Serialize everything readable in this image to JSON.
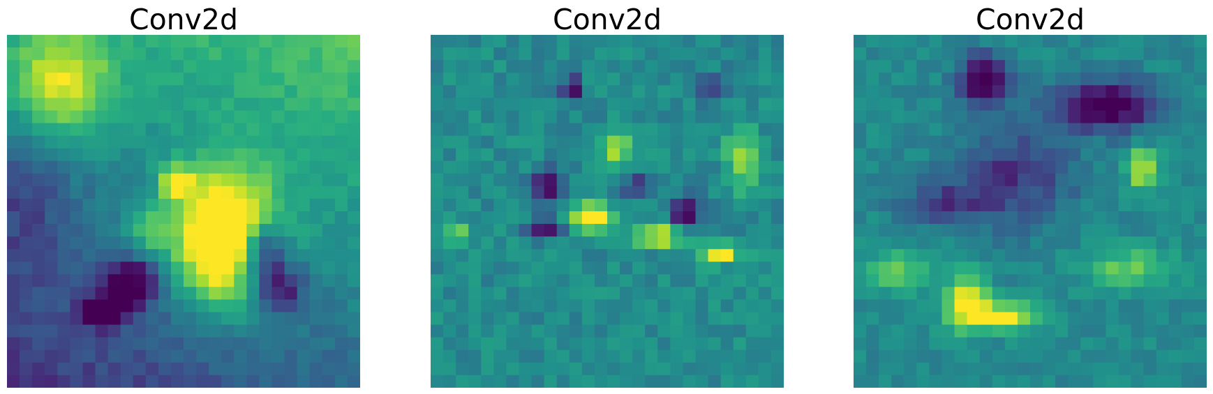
{
  "chart_data": [
    {
      "type": "heatmap",
      "title": "Conv2d",
      "axes": "off",
      "grid": false,
      "colormap": "viridis",
      "shape": [
        28,
        28
      ],
      "value_range": [
        0,
        1
      ],
      "blobs": [
        [
          0.15,
          0.14,
          0.1,
          0.1,
          0.45
        ],
        [
          0.62,
          0.58,
          0.1,
          0.13,
          0.9
        ],
        [
          0.35,
          0.7,
          0.05,
          0.05,
          -0.45
        ],
        [
          0.27,
          0.78,
          0.04,
          0.03,
          -0.55
        ],
        [
          0.72,
          0.62,
          0.05,
          0.07,
          -0.6
        ],
        [
          0.78,
          0.72,
          0.05,
          0.05,
          -0.35
        ],
        [
          0.48,
          0.42,
          0.03,
          0.03,
          0.55
        ],
        [
          0.62,
          0.55,
          0.04,
          0.03,
          0.45
        ],
        [
          0.4,
          0.55,
          0.05,
          0.05,
          0.25
        ],
        [
          0.05,
          0.45,
          0.1,
          0.15,
          -0.15
        ]
      ],
      "base": 0.45,
      "gradient": {
        "x": 0.2,
        "y": -0.4
      },
      "noise": 0.1,
      "seed": 3
    },
    {
      "type": "heatmap",
      "title": "Conv2d",
      "axes": "off",
      "grid": false,
      "colormap": "viridis",
      "shape": [
        28,
        28
      ],
      "value_range": [
        0,
        1
      ],
      "blobs": [
        [
          0.45,
          0.52,
          0.04,
          0.03,
          0.65
        ],
        [
          0.65,
          0.57,
          0.05,
          0.02,
          0.6
        ],
        [
          0.82,
          0.62,
          0.04,
          0.02,
          0.55
        ],
        [
          0.53,
          0.32,
          0.03,
          0.03,
          0.45
        ],
        [
          0.88,
          0.35,
          0.03,
          0.06,
          0.4
        ],
        [
          0.07,
          0.56,
          0.03,
          0.02,
          0.3
        ],
        [
          0.33,
          0.43,
          0.03,
          0.04,
          -0.45
        ],
        [
          0.33,
          0.55,
          0.04,
          0.02,
          -0.45
        ],
        [
          0.72,
          0.5,
          0.03,
          0.03,
          -0.55
        ],
        [
          0.4,
          0.15,
          0.02,
          0.03,
          -0.45
        ],
        [
          0.58,
          0.43,
          0.03,
          0.02,
          -0.4
        ],
        [
          0.8,
          0.15,
          0.03,
          0.03,
          -0.3
        ]
      ],
      "base": 0.48,
      "gradient": {
        "x": 0.0,
        "y": 0.0
      },
      "noise": 0.16,
      "seed": 11
    },
    {
      "type": "heatmap",
      "title": "Conv2d",
      "axes": "off",
      "grid": false,
      "colormap": "viridis",
      "shape": [
        28,
        28
      ],
      "value_range": [
        0,
        1
      ],
      "blobs": [
        [
          0.32,
          0.75,
          0.04,
          0.05,
          0.6
        ],
        [
          0.42,
          0.8,
          0.08,
          0.03,
          0.5
        ],
        [
          0.82,
          0.38,
          0.03,
          0.04,
          0.5
        ],
        [
          0.12,
          0.67,
          0.06,
          0.04,
          0.3
        ],
        [
          0.78,
          0.66,
          0.09,
          0.04,
          0.3
        ],
        [
          0.72,
          0.2,
          0.1,
          0.05,
          -0.55
        ],
        [
          0.37,
          0.13,
          0.05,
          0.05,
          -0.55
        ],
        [
          0.45,
          0.4,
          0.12,
          0.1,
          -0.3
        ],
        [
          0.25,
          0.48,
          0.08,
          0.04,
          -0.25
        ]
      ],
      "base": 0.47,
      "gradient": {
        "x": 0.0,
        "y": 0.0
      },
      "noise": 0.12,
      "seed": 29
    }
  ]
}
